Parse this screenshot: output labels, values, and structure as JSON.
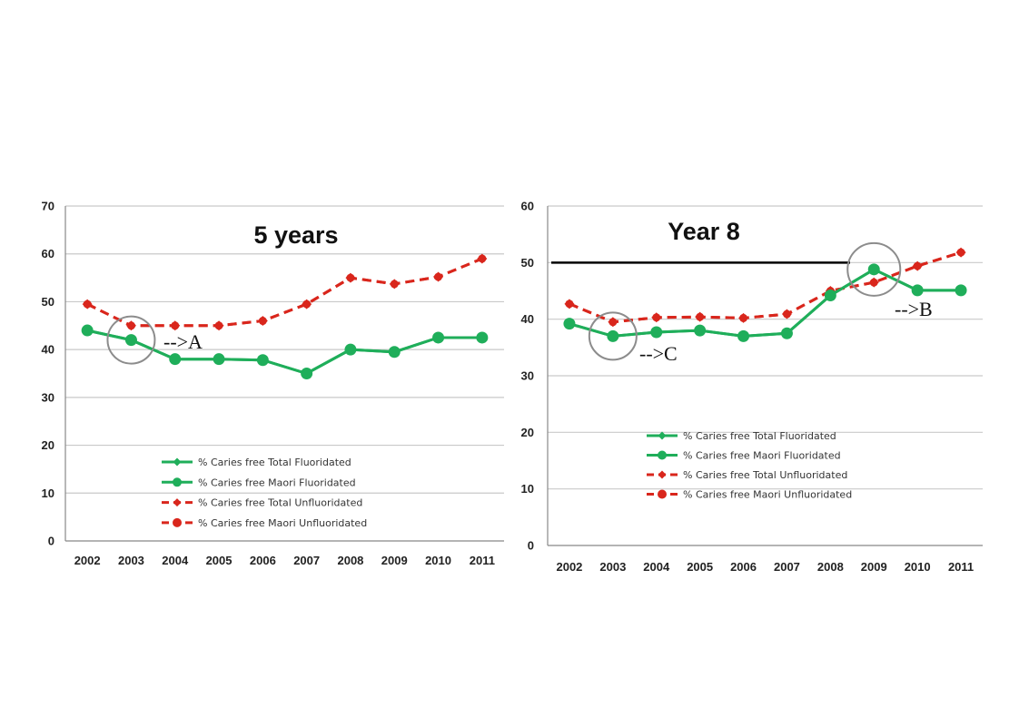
{
  "chart_data": [
    {
      "type": "line",
      "title": "5 years",
      "categories": [
        "2002",
        "2003",
        "2004",
        "2005",
        "2006",
        "2007",
        "2008",
        "2009",
        "2010",
        "2011"
      ],
      "ylim": [
        0,
        70
      ],
      "yticks": [
        0,
        10,
        20,
        30,
        40,
        50,
        60,
        70
      ],
      "grid": true,
      "legend_position": "bottom-center",
      "series": [
        {
          "name": "% Caries free Total Fluoridated",
          "color": "#1fae5a",
          "style": "solid",
          "marker": "diamond",
          "values": [
            44,
            42,
            38,
            38,
            37.8,
            35,
            40,
            39.5,
            42.5,
            42.5
          ]
        },
        {
          "name": "% Caries free Maori Fluoridated",
          "color": "#1fae5a",
          "style": "solid",
          "marker": "circle",
          "values": [
            44,
            42,
            38,
            38,
            37.8,
            35,
            40,
            39.5,
            42.5,
            42.5
          ]
        },
        {
          "name": "% Caries free Total Unfluoridated",
          "color": "#d9261c",
          "style": "dashed",
          "marker": "diamond",
          "values": [
            49.5,
            45,
            45,
            45,
            46,
            49.5,
            55,
            53.7,
            55.2,
            59
          ]
        },
        {
          "name": "% Caries free Maori Unfluoridated",
          "color": "#d9261c",
          "style": "dashed",
          "marker": "circle",
          "values": [
            49.5,
            45,
            45,
            45,
            46,
            49.5,
            55,
            53.7,
            55.2,
            59
          ]
        }
      ],
      "annotations": [
        {
          "label": "-->A",
          "category": "2003"
        }
      ]
    },
    {
      "type": "line",
      "title": "Year 8",
      "categories": [
        "2002",
        "2003",
        "2004",
        "2005",
        "2006",
        "2007",
        "2008",
        "2009",
        "2010",
        "2011"
      ],
      "ylim": [
        0,
        60
      ],
      "yticks": [
        0,
        10,
        20,
        30,
        40,
        50,
        60
      ],
      "grid": true,
      "legend_position": "bottom-center",
      "reference_line": 50,
      "series": [
        {
          "name": "% Caries free Total Fluoridated",
          "color": "#1fae5a",
          "style": "solid",
          "marker": "diamond",
          "values": [
            39.2,
            37,
            37.7,
            38,
            37,
            37.5,
            44.2,
            48.8,
            45.1,
            45.1
          ]
        },
        {
          "name": "% Caries free Maori Fluoridated",
          "color": "#1fae5a",
          "style": "solid",
          "marker": "circle",
          "values": [
            39.2,
            37,
            37.7,
            38,
            37,
            37.5,
            44.2,
            48.8,
            45.1,
            45.1
          ]
        },
        {
          "name": "% Caries free Total Unfluoridated",
          "color": "#d9261c",
          "style": "dashed",
          "marker": "diamond",
          "values": [
            42.7,
            39.5,
            40.3,
            40.4,
            40.2,
            40.9,
            45,
            46.5,
            49.4,
            51.8
          ]
        },
        {
          "name": "% Caries free Maori Unfluoridated",
          "color": "#d9261c",
          "style": "dashed",
          "marker": "circle",
          "values": [
            42.7,
            39.5,
            40.3,
            40.4,
            40.2,
            40.9,
            45,
            46.5,
            49.4,
            51.8
          ]
        }
      ],
      "annotations": [
        {
          "label": "-->C",
          "category": "2003"
        },
        {
          "label": "-->B",
          "category": "2009"
        }
      ]
    }
  ]
}
